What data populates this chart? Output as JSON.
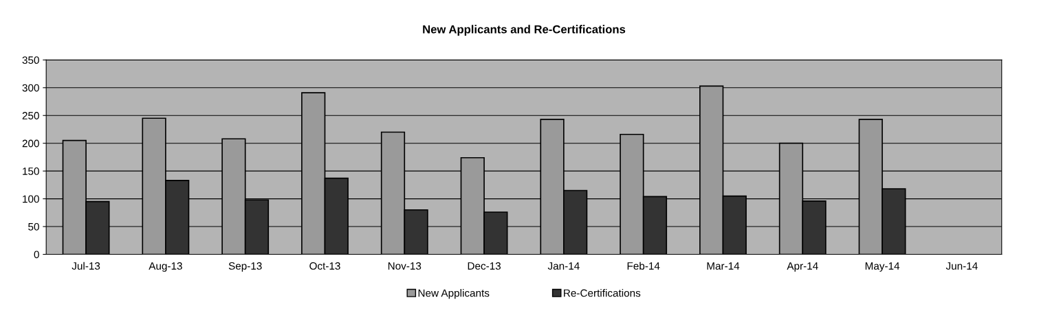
{
  "chart_data": {
    "type": "bar",
    "title": "New Applicants and Re-Certifications",
    "categories": [
      "Jul-13",
      "Aug-13",
      "Sep-13",
      "Oct-13",
      "Nov-13",
      "Dec-13",
      "Jan-14",
      "Feb-14",
      "Mar-14",
      "Apr-14",
      "May-14",
      "Jun-14"
    ],
    "series": [
      {
        "name": "New Applicants",
        "color": "#9a9a9a",
        "values": [
          205,
          245,
          208,
          291,
          220,
          174,
          243,
          216,
          303,
          200,
          243,
          null
        ]
      },
      {
        "name": "Re-Certifications",
        "color": "#333333",
        "values": [
          95,
          133,
          98,
          137,
          80,
          76,
          115,
          104,
          105,
          96,
          118,
          null
        ]
      }
    ],
    "ylim": [
      0,
      350
    ],
    "yticks": [
      0,
      50,
      100,
      150,
      200,
      250,
      300,
      350
    ],
    "grid": "y",
    "legend": "bottom"
  }
}
